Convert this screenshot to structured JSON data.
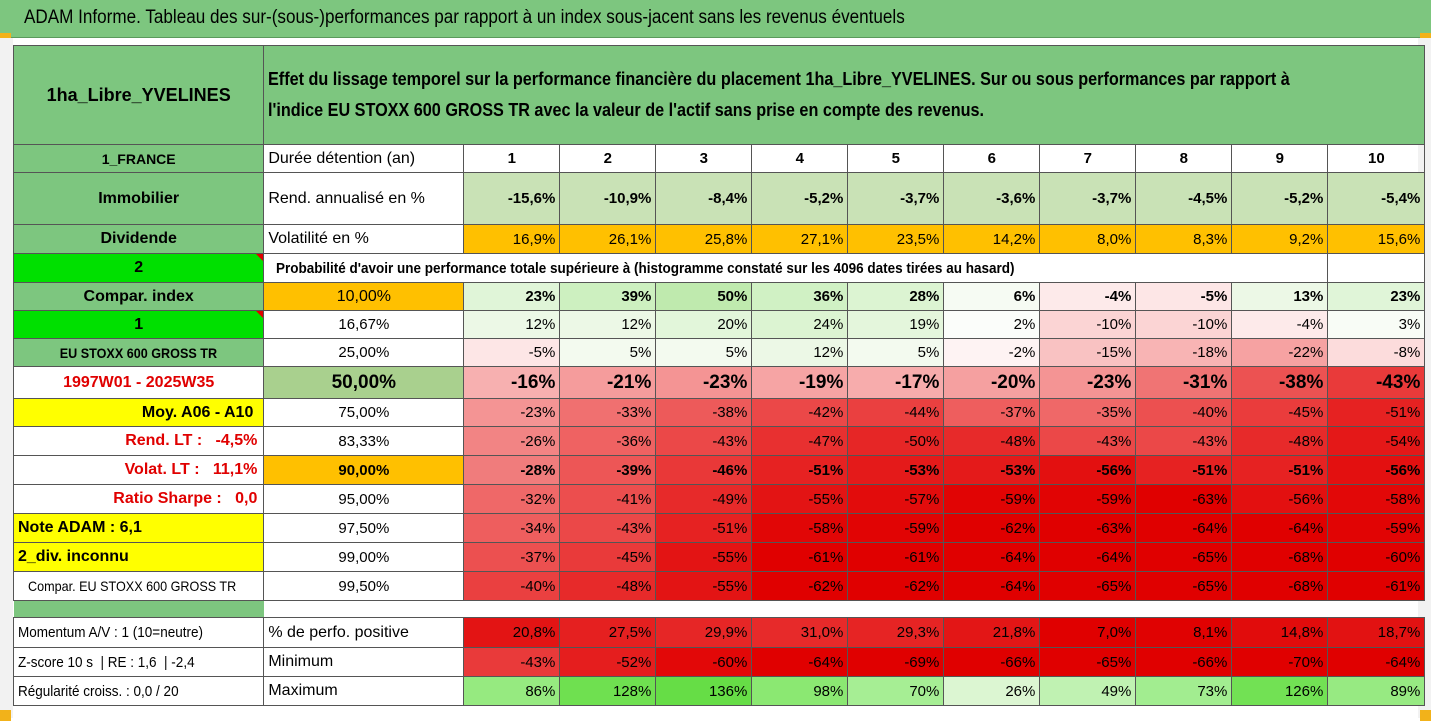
{
  "title": "ADAM Informe. Tableau des sur-(sous-)performances par rapport à un index sous-jacent sans les revenus éventuels",
  "fund_name": "1ha_Libre_YVELINES",
  "description_line1": "Effet du lissage temporel sur la performance financière du placement 1ha_Libre_YVELINES. Sur ou sous performances par rapport à",
  "description_line2": "l'indice EU STOXX 600 GROSS TR avec la valeur de l'actif sans prise en compte des revenus.",
  "left_labels": {
    "country": "1_FRANCE",
    "category": "Immobilier",
    "dividend": "Dividende",
    "num2": "2",
    "compar_index": "Compar. index",
    "num1": "1",
    "index_name": "EU STOXX 600 GROSS TR",
    "period": "1997W01 - 2025W35",
    "moy": "Moy. A06 - A10",
    "rend_lt": "Rend. LT :   -4,5%",
    "volat_lt": "Volat. LT :   11,1%",
    "sharpe": "Ratio Sharpe :   0,0",
    "note": "Note ADAM : 6,1",
    "div": "2_div. inconnu",
    "compar_full": "Compar. EU STOXX 600 GROSS TR",
    "momentum": "Momentum A/V : 1 (10=neutre)",
    "zscore": "Z-score 10 s  | RE : 1,6  | -2,4",
    "regularite": "Régularité croiss. : 0,0 / 20"
  },
  "row_labels": {
    "duration": "Durée détention (an)",
    "rend": "Rend. annualisé en %",
    "volat": "Volatilité en %",
    "proba": "Probabilité d'avoir une performance totale supérieure à (histogramme constaté sur les 4096 dates tirées au hasard)",
    "positive": "% de perfo. positive",
    "minimum": "Minimum",
    "maximum": "Maximum"
  },
  "years": [
    "1",
    "2",
    "3",
    "4",
    "5",
    "6",
    "7",
    "8",
    "9",
    "10"
  ],
  "rend": [
    "-15,6%",
    "-10,9%",
    "-8,4%",
    "-5,2%",
    "-3,7%",
    "-3,6%",
    "-3,7%",
    "-4,5%",
    "-5,2%",
    "-5,4%"
  ],
  "volat": [
    "16,9%",
    "26,1%",
    "25,8%",
    "27,1%",
    "23,5%",
    "14,2%",
    "8,0%",
    "8,3%",
    "9,2%",
    "15,6%"
  ],
  "quantiles": [
    {
      "label": "10,00%",
      "values": [
        "23%",
        "39%",
        "50%",
        "36%",
        "28%",
        "6%",
        "-4%",
        "-5%",
        "13%",
        "23%"
      ]
    },
    {
      "label": "16,67%",
      "values": [
        "12%",
        "12%",
        "20%",
        "24%",
        "19%",
        "2%",
        "-10%",
        "-10%",
        "-4%",
        "3%"
      ]
    },
    {
      "label": "25,00%",
      "values": [
        "-5%",
        "5%",
        "5%",
        "12%",
        "5%",
        "-2%",
        "-15%",
        "-18%",
        "-22%",
        "-8%"
      ]
    },
    {
      "label": "50,00%",
      "values": [
        "-16%",
        "-21%",
        "-23%",
        "-19%",
        "-17%",
        "-20%",
        "-23%",
        "-31%",
        "-38%",
        "-43%"
      ]
    },
    {
      "label": "75,00%",
      "values": [
        "-23%",
        "-33%",
        "-38%",
        "-42%",
        "-44%",
        "-37%",
        "-35%",
        "-40%",
        "-45%",
        "-51%"
      ]
    },
    {
      "label": "83,33%",
      "values": [
        "-26%",
        "-36%",
        "-43%",
        "-47%",
        "-50%",
        "-48%",
        "-43%",
        "-43%",
        "-48%",
        "-54%"
      ]
    },
    {
      "label": "90,00%",
      "values": [
        "-28%",
        "-39%",
        "-46%",
        "-51%",
        "-53%",
        "-53%",
        "-56%",
        "-51%",
        "-51%",
        "-56%"
      ]
    },
    {
      "label": "95,00%",
      "values": [
        "-32%",
        "-41%",
        "-49%",
        "-55%",
        "-57%",
        "-59%",
        "-59%",
        "-63%",
        "-56%",
        "-58%"
      ]
    },
    {
      "label": "97,50%",
      "values": [
        "-34%",
        "-43%",
        "-51%",
        "-58%",
        "-59%",
        "-62%",
        "-63%",
        "-64%",
        "-64%",
        "-59%"
      ]
    },
    {
      "label": "99,00%",
      "values": [
        "-37%",
        "-45%",
        "-55%",
        "-61%",
        "-61%",
        "-64%",
        "-64%",
        "-65%",
        "-68%",
        "-60%"
      ]
    },
    {
      "label": "99,50%",
      "values": [
        "-40%",
        "-48%",
        "-55%",
        "-62%",
        "-62%",
        "-64%",
        "-65%",
        "-65%",
        "-68%",
        "-61%"
      ]
    }
  ],
  "positive": [
    "20,8%",
    "27,5%",
    "29,9%",
    "31,0%",
    "29,3%",
    "21,8%",
    "7,0%",
    "8,1%",
    "14,8%",
    "18,7%"
  ],
  "minimum": [
    "-43%",
    "-52%",
    "-60%",
    "-64%",
    "-69%",
    "-66%",
    "-65%",
    "-66%",
    "-70%",
    "-64%"
  ],
  "maximum": [
    "86%",
    "128%",
    "136%",
    "98%",
    "70%",
    "26%",
    "49%",
    "73%",
    "126%",
    "89%"
  ],
  "colors": {
    "header_green": "#7dc67f",
    "bright_green": "#00e000",
    "yellow": "#ffff00",
    "orange": "#ffc000",
    "red_text": "#e00000",
    "corner": "#f2b21a"
  }
}
